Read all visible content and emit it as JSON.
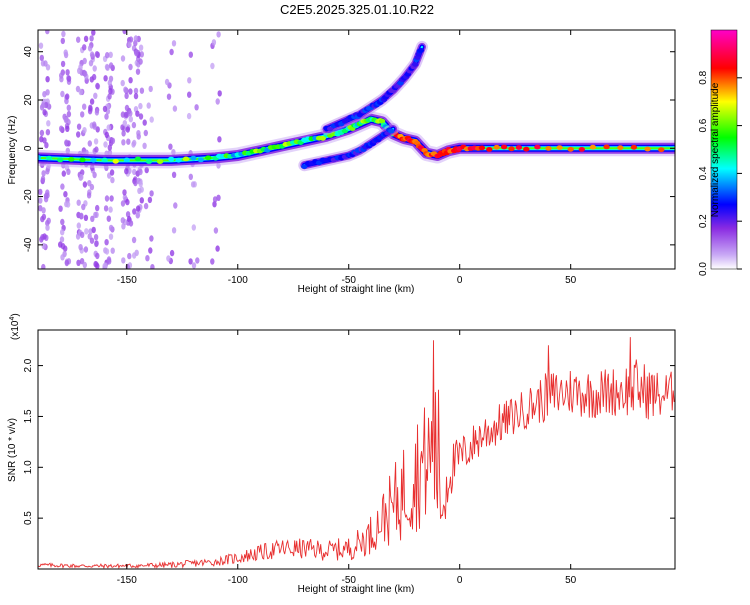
{
  "figure_title": "C2E5.2025.325.01.10.R22",
  "chart_data": [
    {
      "type": "heatmap",
      "title": "C2E5.2025.325.01.10.R22",
      "xlabel": "Height of straight line (km)",
      "ylabel": "Frequency (Hz)",
      "xlim": [
        -190,
        97
      ],
      "ylim": [
        -50,
        49
      ],
      "xticks": [
        -150,
        -100,
        -50,
        0,
        50
      ],
      "yticks": [
        -40,
        -20,
        0,
        20,
        40
      ],
      "colorbar": {
        "label": "Normalized spectral amplitude",
        "range": [
          0,
          1
        ],
        "ticks": [
          0.0,
          0.2,
          0.4,
          0.6,
          0.8
        ],
        "tick_labels": [
          "0.0",
          "0.2",
          "0.4",
          "0.6",
          "0.8"
        ],
        "stops": [
          "#ffffff",
          "#b48cf0",
          "#0000ff",
          "#00ffff",
          "#00ff00",
          "#ffff00",
          "#ff0000",
          "#ff00ff"
        ]
      },
      "ridges": [
        {
          "name": "main-echo",
          "points": [
            [
              -190,
              -4
            ],
            [
              -160,
              -5
            ],
            [
              -130,
              -5
            ],
            [
              -110,
              -4
            ],
            [
              -100,
              -3
            ],
            [
              -90,
              -1
            ],
            [
              -80,
              1
            ],
            [
              -70,
              3
            ],
            [
              -60,
              5
            ],
            [
              -50,
              8
            ],
            [
              -45,
              10
            ],
            [
              -40,
              12
            ],
            [
              -35,
              11
            ],
            [
              -30,
              6
            ],
            [
              -25,
              4
            ],
            [
              -20,
              3
            ],
            [
              -15,
              -2
            ],
            [
              -10,
              -3
            ],
            [
              -5,
              -1
            ],
            [
              0,
              0
            ],
            [
              10,
              0
            ],
            [
              30,
              0
            ],
            [
              60,
              0
            ],
            [
              97,
              0
            ]
          ]
        },
        {
          "name": "upper-branch",
          "points": [
            [
              -60,
              8
            ],
            [
              -50,
              12
            ],
            [
              -45,
              14
            ],
            [
              -40,
              17
            ],
            [
              -35,
              20
            ],
            [
              -30,
              24
            ],
            [
              -25,
              29
            ],
            [
              -20,
              35
            ],
            [
              -17,
              42
            ]
          ]
        },
        {
          "name": "lower-branch",
          "points": [
            [
              -70,
              -7
            ],
            [
              -60,
              -5
            ],
            [
              -50,
              -3
            ],
            [
              -45,
              -1
            ],
            [
              -40,
              2
            ],
            [
              -35,
              5
            ],
            [
              -30,
              8
            ]
          ]
        }
      ]
    },
    {
      "type": "line",
      "xlabel": "Height of straight line (km)",
      "ylabel": "SNR (10 * v/v)",
      "y_multiplier": "(x10",
      "y_multiplier_exp": "4",
      "y_multiplier_close": ")",
      "xlim": [
        -190,
        97
      ],
      "ylim": [
        0,
        2.35
      ],
      "xticks": [
        -150,
        -100,
        -50,
        0,
        50
      ],
      "yticks": [
        0.5,
        1.0,
        1.5,
        2.0
      ],
      "ytick_labels": [
        "0.5",
        "1.0",
        "1.5",
        "2.0"
      ],
      "color": "#e83030",
      "series": [
        {
          "name": "SNR envelope",
          "x": [
            -190,
            -170,
            -150,
            -130,
            -110,
            -100,
            -90,
            -80,
            -70,
            -60,
            -50,
            -45,
            -40,
            -35,
            -30,
            -25,
            -20,
            -15,
            -10,
            -8,
            -5,
            0,
            5,
            10,
            20,
            30,
            40,
            50,
            60,
            70,
            80,
            90,
            97
          ],
          "y": [
            0.04,
            0.03,
            0.03,
            0.04,
            0.07,
            0.11,
            0.16,
            0.2,
            0.2,
            0.18,
            0.2,
            0.26,
            0.34,
            0.5,
            0.6,
            0.78,
            0.95,
            1.05,
            1.15,
            0.6,
            0.95,
            1.1,
            1.2,
            1.32,
            1.45,
            1.58,
            1.7,
            1.75,
            1.72,
            1.75,
            1.78,
            1.7,
            1.75
          ],
          "amplitude": [
            0.02,
            0.02,
            0.02,
            0.03,
            0.04,
            0.06,
            0.08,
            0.1,
            0.1,
            0.1,
            0.12,
            0.15,
            0.2,
            0.25,
            0.4,
            0.5,
            0.6,
            0.6,
            0.9,
            0.5,
            0.3,
            0.2,
            0.2,
            0.22,
            0.2,
            0.2,
            0.25,
            0.25,
            0.25,
            0.25,
            0.3,
            0.25,
            0.2
          ]
        }
      ],
      "peaks": [
        [
          -12,
          2.25
        ],
        [
          40,
          2.2
        ],
        [
          77,
          2.28
        ]
      ]
    }
  ]
}
